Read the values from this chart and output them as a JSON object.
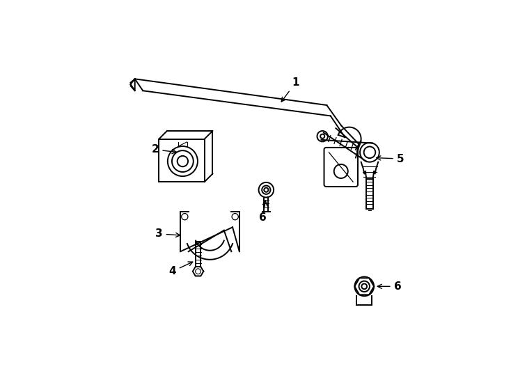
{
  "background_color": "#ffffff",
  "line_color": "#000000",
  "figure_width": 7.34,
  "figure_height": 5.4,
  "dpi": 100
}
